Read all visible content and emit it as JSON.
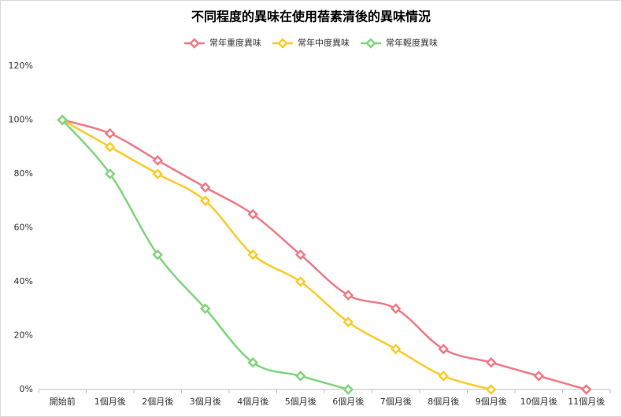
{
  "chart_data": {
    "type": "line",
    "title": "不同程度的異味在使用蓓素清後的異味情況",
    "categories": [
      "開始前",
      "1個月後",
      "2個月後",
      "3個月後",
      "4個月後",
      "5個月後",
      "6個月後",
      "7個月後",
      "8個月後",
      "9個月後",
      "10個月後",
      "11個月後"
    ],
    "series": [
      {
        "name": "常年重度異味",
        "color": "#f07a86",
        "values": [
          100,
          95,
          85,
          75,
          65,
          50,
          35,
          30,
          15,
          10,
          5,
          0
        ]
      },
      {
        "name": "常年中度異味",
        "color": "#fccb2a",
        "values": [
          100,
          90,
          80,
          70,
          50,
          40,
          25,
          15,
          5,
          0,
          null,
          null
        ]
      },
      {
        "name": "常年輕度異味",
        "color": "#80d47e",
        "values": [
          100,
          80,
          50,
          30,
          10,
          5,
          0,
          null,
          null,
          null,
          null,
          null
        ]
      }
    ],
    "ylim": [
      0,
      120
    ],
    "yticks": [
      {
        "value": 0,
        "label": "0%"
      },
      {
        "value": 20,
        "label": "20%"
      },
      {
        "value": 40,
        "label": "40%"
      },
      {
        "value": 60,
        "label": "60%"
      },
      {
        "value": 80,
        "label": "80%"
      },
      {
        "value": 100,
        "label": "100%"
      },
      {
        "value": 120,
        "label": "120%"
      }
    ],
    "grid": false,
    "smooth": true,
    "legend": "top"
  }
}
